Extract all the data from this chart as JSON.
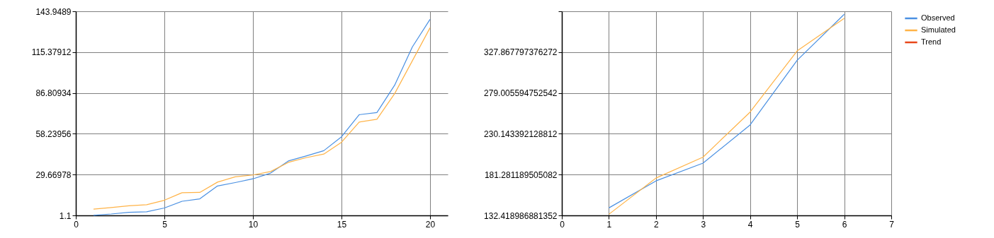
{
  "chart_data": [
    {
      "type": "line",
      "x": [
        1,
        2,
        3,
        4,
        5,
        6,
        7,
        8,
        9,
        10,
        11,
        12,
        13,
        14,
        15,
        16,
        17,
        18,
        19,
        20
      ],
      "xlim": [
        0,
        21
      ],
      "xticks": [
        0,
        5,
        10,
        15,
        20
      ],
      "ylim": [
        1.1,
        143.9489
      ],
      "yticks": [
        1.1,
        29.66978,
        58.23956,
        86.80934,
        115.37912,
        143.9489
      ],
      "grid": true,
      "series": [
        {
          "color": "#4a90e2",
          "values": [
            1.2,
            2.1,
            3.3,
            3.6,
            6.3,
            11.0,
            12.7,
            21.7,
            24.1,
            26.7,
            30.7,
            39.2,
            42.7,
            46.4,
            56.1,
            71.6,
            73.1,
            92.2,
            119.0,
            138.3
          ]
        },
        {
          "color": "#ffb347",
          "values": [
            5.5,
            6.6,
            7.8,
            8.6,
            11.7,
            17.0,
            17.2,
            24.4,
            28.1,
            29.4,
            31.8,
            38.2,
            41.5,
            44.0,
            52.3,
            66.4,
            68.4,
            86.3,
            109.3,
            132.4
          ]
        }
      ]
    },
    {
      "type": "line",
      "x": [
        1,
        2,
        3,
        4,
        5,
        6
      ],
      "xlim": [
        0,
        7
      ],
      "xticks": [
        0,
        1,
        2,
        3,
        4,
        5,
        6,
        7
      ],
      "ylim": [
        132.418986881352,
        376.729999752002
      ],
      "yticks": [
        132.418986881352,
        181.281189505082,
        230.143392128812,
        279.005594752542,
        327.867797376272,
        {
          "value": 376.729999752002,
          "label": null
        }
      ],
      "grid": true,
      "legend": "top right",
      "series": [
        {
          "name": "Observed",
          "color": "#4a90e2",
          "values": [
            141.4,
            173.7,
            195.0,
            240.7,
            318.1,
            373.1
          ]
        },
        {
          "name": "Simulated",
          "color": "#ffb347",
          "values": [
            133.8,
            177.1,
            202.2,
            256.1,
            329.3,
            368.3
          ]
        },
        {
          "name": "Trend",
          "color": "#e8471a",
          "values": [
            null,
            null,
            null,
            null,
            null,
            null
          ]
        }
      ]
    }
  ]
}
